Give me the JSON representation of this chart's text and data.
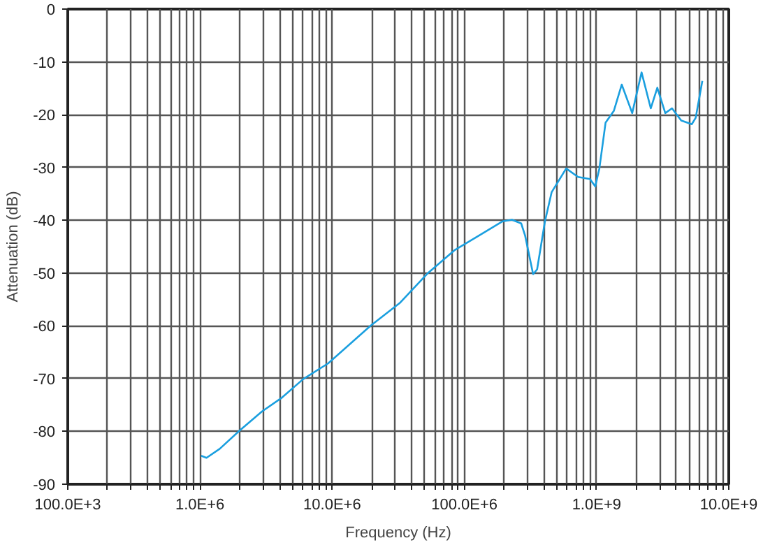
{
  "chart_data": {
    "type": "line",
    "xlabel": "Frequency (Hz)",
    "ylabel": "Attenuation (dB)",
    "xlim": [
      100000,
      10000000000
    ],
    "ylim": [
      -90,
      0
    ],
    "xticks": [
      {
        "value": 100000,
        "label": "100.0E+3"
      },
      {
        "value": 200000,
        "label": null
      },
      {
        "value": 300000,
        "label": null
      },
      {
        "value": 400000,
        "label": null
      },
      {
        "value": 500000,
        "label": null
      },
      {
        "value": 600000,
        "label": null
      },
      {
        "value": 700000,
        "label": null
      },
      {
        "value": 800000,
        "label": null
      },
      {
        "value": 900000,
        "label": null
      },
      {
        "value": 1000000,
        "label": "1.0E+6"
      },
      {
        "value": 2000000,
        "label": null
      },
      {
        "value": 3000000,
        "label": null
      },
      {
        "value": 4000000,
        "label": null
      },
      {
        "value": 5000000,
        "label": null
      },
      {
        "value": 6000000,
        "label": null
      },
      {
        "value": 7000000,
        "label": null
      },
      {
        "value": 8000000,
        "label": null
      },
      {
        "value": 9000000,
        "label": null
      },
      {
        "value": 10000000,
        "label": "10.0E+6"
      },
      {
        "value": 20000000,
        "label": null
      },
      {
        "value": 30000000,
        "label": null
      },
      {
        "value": 40000000,
        "label": null
      },
      {
        "value": 50000000,
        "label": null
      },
      {
        "value": 60000000,
        "label": null
      },
      {
        "value": 70000000,
        "label": null
      },
      {
        "value": 80000000,
        "label": null
      },
      {
        "value": 90000000,
        "label": null
      },
      {
        "value": 100000000,
        "label": "100.0E+6"
      },
      {
        "value": 200000000,
        "label": null
      },
      {
        "value": 300000000,
        "label": null
      },
      {
        "value": 400000000,
        "label": null
      },
      {
        "value": 500000000,
        "label": null
      },
      {
        "value": 600000000,
        "label": null
      },
      {
        "value": 700000000,
        "label": null
      },
      {
        "value": 800000000,
        "label": null
      },
      {
        "value": 900000000,
        "label": null
      },
      {
        "value": 1000000000,
        "label": "1.0E+9"
      },
      {
        "value": 2000000000,
        "label": null
      },
      {
        "value": 3000000000,
        "label": null
      },
      {
        "value": 4000000000,
        "label": null
      },
      {
        "value": 5000000000,
        "label": null
      },
      {
        "value": 6000000000,
        "label": null
      },
      {
        "value": 7000000000,
        "label": null
      },
      {
        "value": 8000000000,
        "label": null
      },
      {
        "value": 9000000000,
        "label": null
      },
      {
        "value": 10000000000,
        "label": "10.0E+9"
      }
    ],
    "yticks": [
      0,
      -10,
      -20,
      -30,
      -40,
      -50,
      -60,
      -70,
      -80,
      -90
    ],
    "log": "x",
    "grid": true,
    "marker": "none",
    "line_style": "solid",
    "series": [
      {
        "color": "#1a9fdf",
        "x": [
          1020000,
          1120000,
          1410000,
          2000000,
          2950000,
          4170000,
          6030000,
          9330000,
          19500000,
          32400000,
          52500000,
          85000000,
          129000000,
          195000000,
          229000000,
          269000000,
          288000000,
          331000000,
          355000000,
          407000000,
          457000000,
          589000000,
          724000000,
          891000000,
          977000000,
          1050000000,
          1170000000,
          1350000000,
          1550000000,
          1860000000,
          2190000000,
          2570000000,
          2880000000,
          3310000000,
          3720000000,
          4370000000,
          5250000000,
          5620000000,
          6310000000
        ],
        "values": [
          -84.6,
          -85,
          -83.3,
          -79.8,
          -76.2,
          -73.6,
          -70.1,
          -67.1,
          -60,
          -55.7,
          -50.1,
          -45.6,
          -42.9,
          -40.2,
          -39.9,
          -40.6,
          -42.9,
          -50.2,
          -49.3,
          -40.2,
          -34.7,
          -30.2,
          -31.8,
          -32.2,
          -33.6,
          -30.2,
          -21.5,
          -19.3,
          -14.3,
          -19.7,
          -12,
          -18.8,
          -14.9,
          -19.7,
          -18.8,
          -21.1,
          -21.8,
          -20.6,
          -13.6
        ]
      }
    ]
  }
}
